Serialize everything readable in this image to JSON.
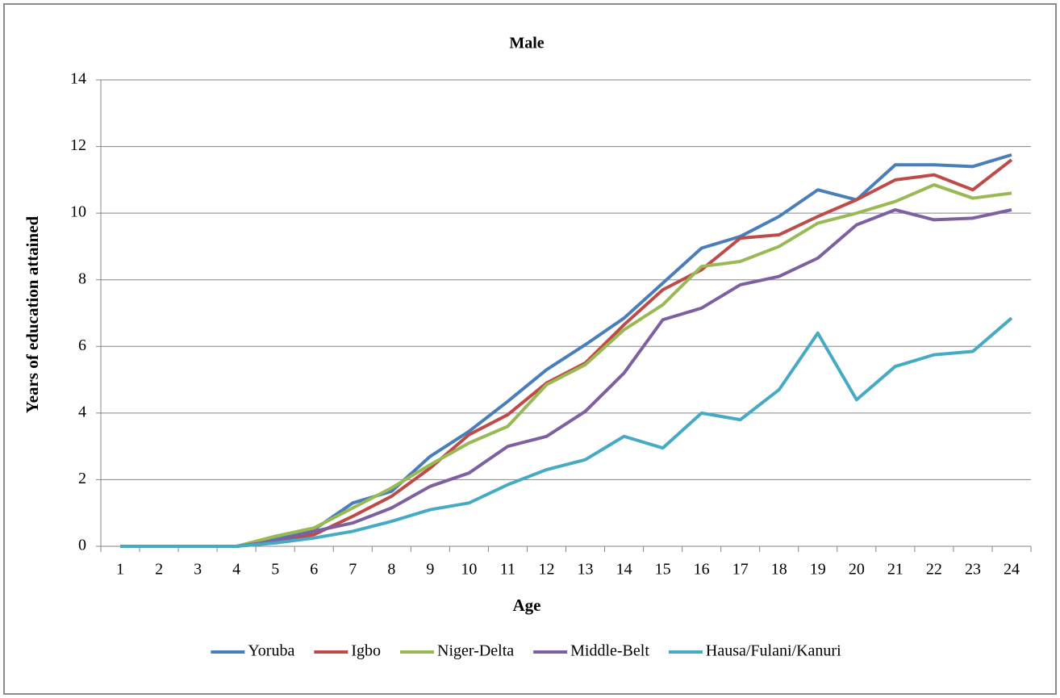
{
  "chart_data": {
    "type": "line",
    "title": "Male",
    "x_label": "Age",
    "y_label": "Years of education attained",
    "categories": [
      "1",
      "2",
      "3",
      "4",
      "5",
      "6",
      "7",
      "8",
      "9",
      "10",
      "11",
      "12",
      "13",
      "14",
      "15",
      "16",
      "17",
      "18",
      "19",
      "20",
      "21",
      "22",
      "23",
      "24"
    ],
    "series": [
      {
        "name": "Yoruba",
        "color": "#4a7ebb",
        "values": [
          0,
          0,
          0,
          0,
          0.2,
          0.5,
          1.3,
          1.65,
          2.7,
          3.45,
          4.35,
          5.3,
          6.05,
          6.85,
          7.9,
          8.95,
          9.3,
          9.9,
          10.7,
          10.4,
          11.45,
          11.45,
          11.4,
          11.75
        ]
      },
      {
        "name": "Igbo",
        "color": "#be4b48",
        "values": [
          0,
          0,
          0,
          0,
          0.15,
          0.35,
          0.9,
          1.5,
          2.35,
          3.35,
          3.95,
          4.9,
          5.5,
          6.65,
          7.7,
          8.3,
          9.25,
          9.35,
          9.9,
          10.4,
          11.0,
          11.15,
          10.7,
          11.6
        ]
      },
      {
        "name": "Niger-Delta",
        "color": "#98b954",
        "values": [
          0,
          0,
          0,
          0,
          0.3,
          0.55,
          1.15,
          1.75,
          2.45,
          3.1,
          3.6,
          4.85,
          5.45,
          6.5,
          7.25,
          8.4,
          8.55,
          9.0,
          9.7,
          10.0,
          10.35,
          10.85,
          10.45,
          10.6
        ]
      },
      {
        "name": "Middle-Belt",
        "color": "#7d60a0",
        "values": [
          0,
          0,
          0,
          0,
          0.15,
          0.45,
          0.7,
          1.15,
          1.8,
          2.2,
          3.0,
          3.3,
          4.05,
          5.2,
          6.8,
          7.15,
          7.85,
          8.1,
          8.65,
          9.65,
          10.1,
          9.8,
          9.85,
          10.1
        ]
      },
      {
        "name": "Hausa/Fulani/Kanuri",
        "color": "#46aac5",
        "values": [
          0,
          0,
          0,
          0,
          0.1,
          0.25,
          0.45,
          0.75,
          1.1,
          1.3,
          1.85,
          2.3,
          2.6,
          3.3,
          2.95,
          4.0,
          3.8,
          4.7,
          6.4,
          4.4,
          5.4,
          5.75,
          5.85,
          6.85
        ]
      }
    ],
    "ylim": [
      0,
      14
    ],
    "yticks": [
      0,
      2,
      4,
      6,
      8,
      10,
      12,
      14
    ],
    "grid": true,
    "legend": "bottom"
  }
}
